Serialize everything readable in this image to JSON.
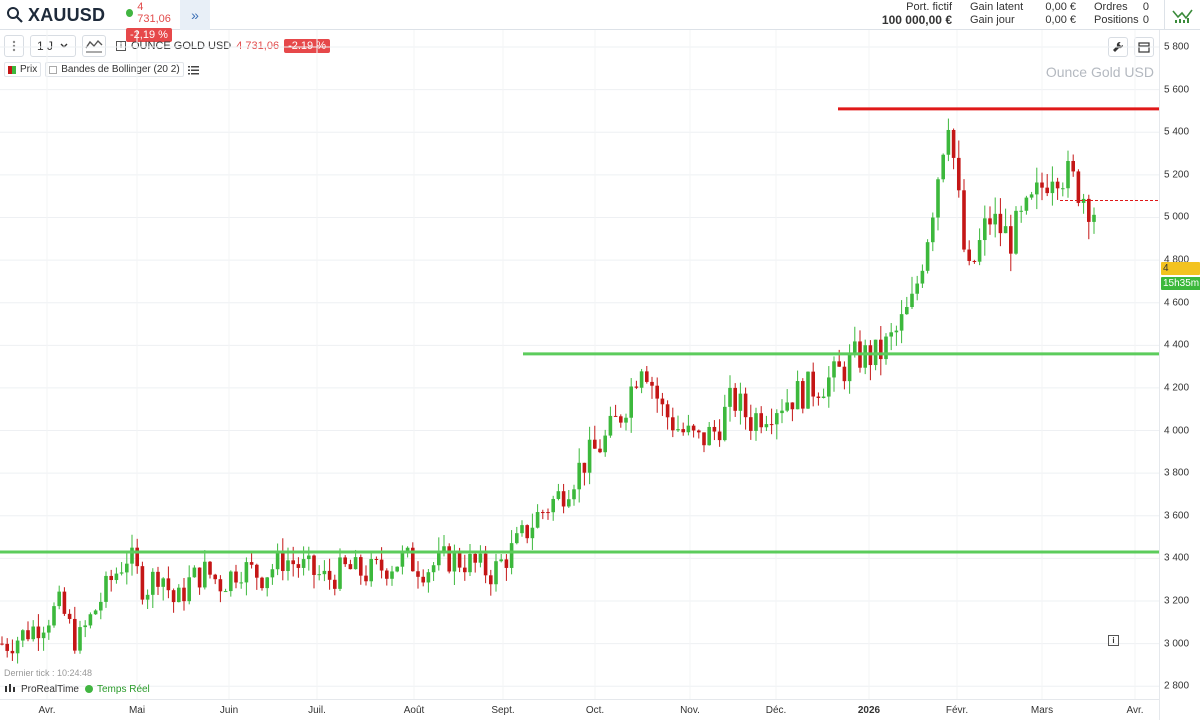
{
  "header": {
    "symbol": "XAUUSD",
    "last_price": "4 731,06",
    "change_pct": "-2,19 %",
    "expand_label": "»",
    "portfolio_label": "Port. fictif",
    "portfolio_value": "100 000,00 €",
    "gain_latent_label": "Gain latent",
    "gain_jour_label": "Gain jour",
    "gain_latent_value": "0,00 €",
    "gain_jour_value": "0,00 €",
    "orders_label": "Ordres",
    "positions_label": "Positions",
    "orders_value": "0",
    "positions_value": "0"
  },
  "toolbar": {
    "period": "1 J",
    "instrument_name": "OUNCE GOLD USD",
    "instrument_price": "4 731,06",
    "instrument_change": "-2.19 %"
  },
  "legend": {
    "price_label": "Prix",
    "bollinger_label": "Bandes de Bollinger (20 2)"
  },
  "watermark": "Ounce Gold USD",
  "price_tag": {
    "value": "4 731,06",
    "timer": "15h35m"
  },
  "footer": {
    "last_tick": "Dernier tick : 10:24:48",
    "brand": "ProRealTime",
    "realtime_label": "Temps Réel"
  },
  "colors": {
    "up": "#3cb83c",
    "down": "#c41616",
    "hline_green": "#5ccc5c",
    "hline_red": "#e01818"
  },
  "chart_data": {
    "type": "candlestick",
    "title": "Ounce Gold USD",
    "ylim": [
      2740,
      5880
    ],
    "y_ticks": [
      2800,
      3000,
      3200,
      3400,
      3600,
      3800,
      4000,
      4200,
      4400,
      4600,
      4800,
      5000,
      5200,
      5400,
      5600,
      5800
    ],
    "y_tick_labels": [
      "2 800",
      "3 000",
      "3 200",
      "3 400",
      "3 600",
      "3 800",
      "4 000",
      "4 200",
      "4 400",
      "4 600",
      "4 800",
      "5 000",
      "5 200",
      "5 400",
      "5 600",
      "5 800"
    ],
    "x_months": [
      "Avr.",
      "Mai",
      "Juin",
      "Juil.",
      "Août",
      "Sept.",
      "Oct.",
      "Nov.",
      "Déc.",
      "2026",
      "Févr.",
      "Mars",
      "Avr."
    ],
    "horizontal_lines": [
      {
        "value": 3430,
        "color": "green",
        "start_month": "Avr."
      },
      {
        "value": 4360,
        "color": "green",
        "start_month": "Sept."
      },
      {
        "value": 5510,
        "color": "red",
        "start_month": "2026"
      }
    ],
    "dotted_level": 5080,
    "grid": true,
    "close_path": [
      [
        "Avr.",
        3000
      ],
      [
        "Avr.",
        3050
      ],
      [
        "Avr.",
        3100
      ],
      [
        "Avr.",
        3180
      ],
      [
        "Avr.",
        3000
      ],
      [
        "Avr.",
        3150
      ],
      [
        "Avr.",
        3300
      ],
      [
        "Avr.",
        3420
      ],
      [
        "Mai",
        3250
      ],
      [
        "Mai",
        3350
      ],
      [
        "Mai",
        3180
      ],
      [
        "Mai",
        3300
      ],
      [
        "Mai",
        3340
      ],
      [
        "Mai",
        3280
      ],
      [
        "Juin",
        3360
      ],
      [
        "Juin",
        3320
      ],
      [
        "Juin",
        3400
      ],
      [
        "Juin",
        3350
      ],
      [
        "Juil.",
        3300
      ],
      [
        "Juil.",
        3350
      ],
      [
        "Juil.",
        3330
      ],
      [
        "Juil.",
        3360
      ],
      [
        "Juil.",
        3400
      ],
      [
        "Août",
        3350
      ],
      [
        "Août",
        3400
      ],
      [
        "Août",
        3380
      ],
      [
        "Août",
        3330
      ],
      [
        "Sept.",
        3450
      ],
      [
        "Sept.",
        3600
      ],
      [
        "Sept.",
        3700
      ],
      [
        "Sept.",
        3850
      ],
      [
        "Oct.",
        3950
      ],
      [
        "Oct.",
        4100
      ],
      [
        "Oct.",
        4350
      ],
      [
        "Oct.",
        4100
      ],
      [
        "Oct.",
        4000
      ],
      [
        "Nov.",
        3950
      ],
      [
        "Nov.",
        4000
      ],
      [
        "Nov.",
        4150
      ],
      [
        "Nov.",
        4050
      ],
      [
        "Nov.",
        4100
      ],
      [
        "Déc.",
        4150
      ],
      [
        "Déc.",
        4200
      ],
      [
        "Déc.",
        4250
      ],
      [
        "Déc.",
        4350
      ],
      [
        "2026",
        4350
      ],
      [
        "2026",
        4450
      ],
      [
        "2026",
        4600
      ],
      [
        "2026",
        5000
      ],
      [
        "2026",
        5500
      ],
      [
        "Févr.",
        4700
      ],
      [
        "Févr.",
        5000
      ],
      [
        "Févr.",
        4900
      ],
      [
        "Févr.",
        5050
      ],
      [
        "Mars",
        5250
      ],
      [
        "Mars",
        5150
      ],
      [
        "Mars",
        5000
      ],
      [
        "Mars",
        4731
      ]
    ]
  }
}
